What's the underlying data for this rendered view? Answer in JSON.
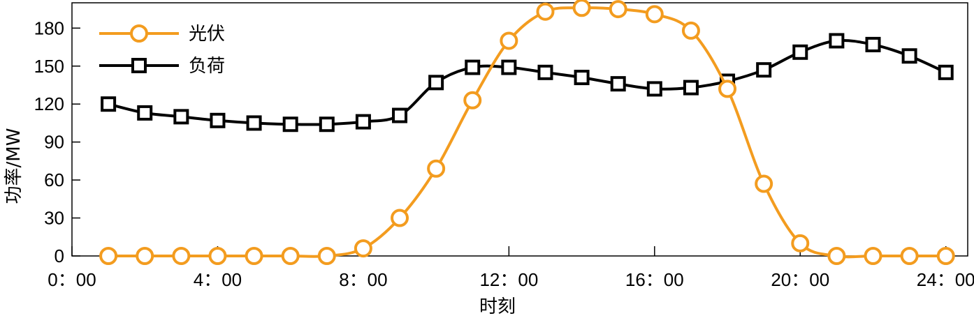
{
  "chart_data": {
    "type": "line",
    "xlabel": "时刻",
    "ylabel": "功率/MW",
    "ylim": [
      0,
      200
    ],
    "xlim": [
      0,
      24.6
    ],
    "x_ticks": [
      0,
      4,
      8,
      12,
      16,
      20,
      24
    ],
    "x_tick_labels": [
      "0：00",
      "4：00",
      "8：00",
      "12：00",
      "16：00",
      "20：00",
      "24：00"
    ],
    "y_ticks": [
      0,
      30,
      60,
      90,
      120,
      150,
      180
    ],
    "y_tick_labels": [
      "0",
      "30",
      "60",
      "90",
      "120",
      "150",
      "180"
    ],
    "grid": false,
    "legend_position": "top-left",
    "x": [
      1,
      2,
      3,
      4,
      5,
      6,
      7,
      8,
      9,
      10,
      11,
      12,
      13,
      14,
      15,
      16,
      17,
      18,
      19,
      20,
      21,
      22,
      23,
      24
    ],
    "series": [
      {
        "name": "光伏",
        "color": "#F39C1F",
        "marker": "circle",
        "values": [
          0,
          0,
          0,
          0,
          0,
          0,
          0,
          6,
          30,
          69,
          123,
          170,
          193,
          196,
          195,
          191,
          178,
          132,
          57,
          10,
          0,
          0,
          0,
          0
        ]
      },
      {
        "name": "负荷",
        "color": "#000000",
        "marker": "square",
        "values": [
          120,
          113,
          110,
          107,
          105,
          104,
          104,
          106,
          111,
          137,
          149,
          149,
          145,
          141,
          136,
          132,
          133,
          138,
          147,
          161,
          170,
          167,
          158,
          145
        ]
      }
    ]
  }
}
